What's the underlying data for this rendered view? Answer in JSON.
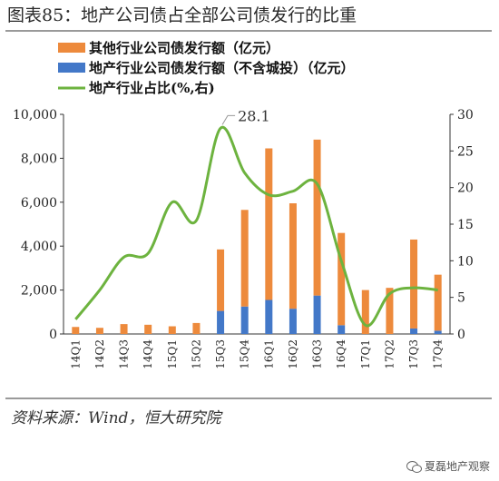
{
  "title": "图表85：地产公司债占全部公司债发行的比重",
  "source": "资料来源：Wind，恒大研究院",
  "watermark": "夏磊地产观察",
  "colors": {
    "other": "#ED8A3C",
    "property": "#4378C8",
    "line": "#6DB33F"
  },
  "chart_data": {
    "type": "bar",
    "categories": [
      "14Q1",
      "14Q2",
      "14Q3",
      "14Q4",
      "15Q1",
      "15Q2",
      "15Q3",
      "15Q4",
      "16Q1",
      "16Q2",
      "16Q3",
      "16Q4",
      "17Q1",
      "17Q2",
      "17Q3",
      "17Q4"
    ],
    "series": [
      {
        "name": "其他行业公司债发行额（亿元）",
        "type": "bar",
        "axis": "left",
        "values": [
          320,
          280,
          450,
          420,
          350,
          500,
          2800,
          4400,
          6900,
          4800,
          7100,
          4200,
          2000,
          2100,
          4050,
          2550
        ]
      },
      {
        "name": "地产行业公司债发行额（不含城投）（亿元）",
        "type": "bar",
        "axis": "left",
        "values": [
          0,
          0,
          0,
          0,
          0,
          0,
          1050,
          1250,
          1550,
          1150,
          1750,
          400,
          0,
          0,
          250,
          150
        ]
      },
      {
        "name": "地产行业占比(%,右)",
        "type": "line",
        "axis": "right",
        "values": [
          2,
          6,
          10.5,
          11,
          18,
          15.5,
          28.1,
          22,
          19,
          19.5,
          20.5,
          10,
          1.2,
          5.5,
          6.3,
          6
        ]
      }
    ],
    "stacked": true,
    "annotation": "28.1",
    "ylim_left": [
      0,
      10000
    ],
    "ylim_right": [
      0,
      30
    ],
    "yticks_left": [
      "0",
      "2,000",
      "4,000",
      "6,000",
      "8,000",
      "10,000"
    ],
    "yticks_right": [
      "0",
      "5",
      "10",
      "15",
      "20",
      "25",
      "30"
    ],
    "grid": false,
    "legend_position": "top-left"
  }
}
